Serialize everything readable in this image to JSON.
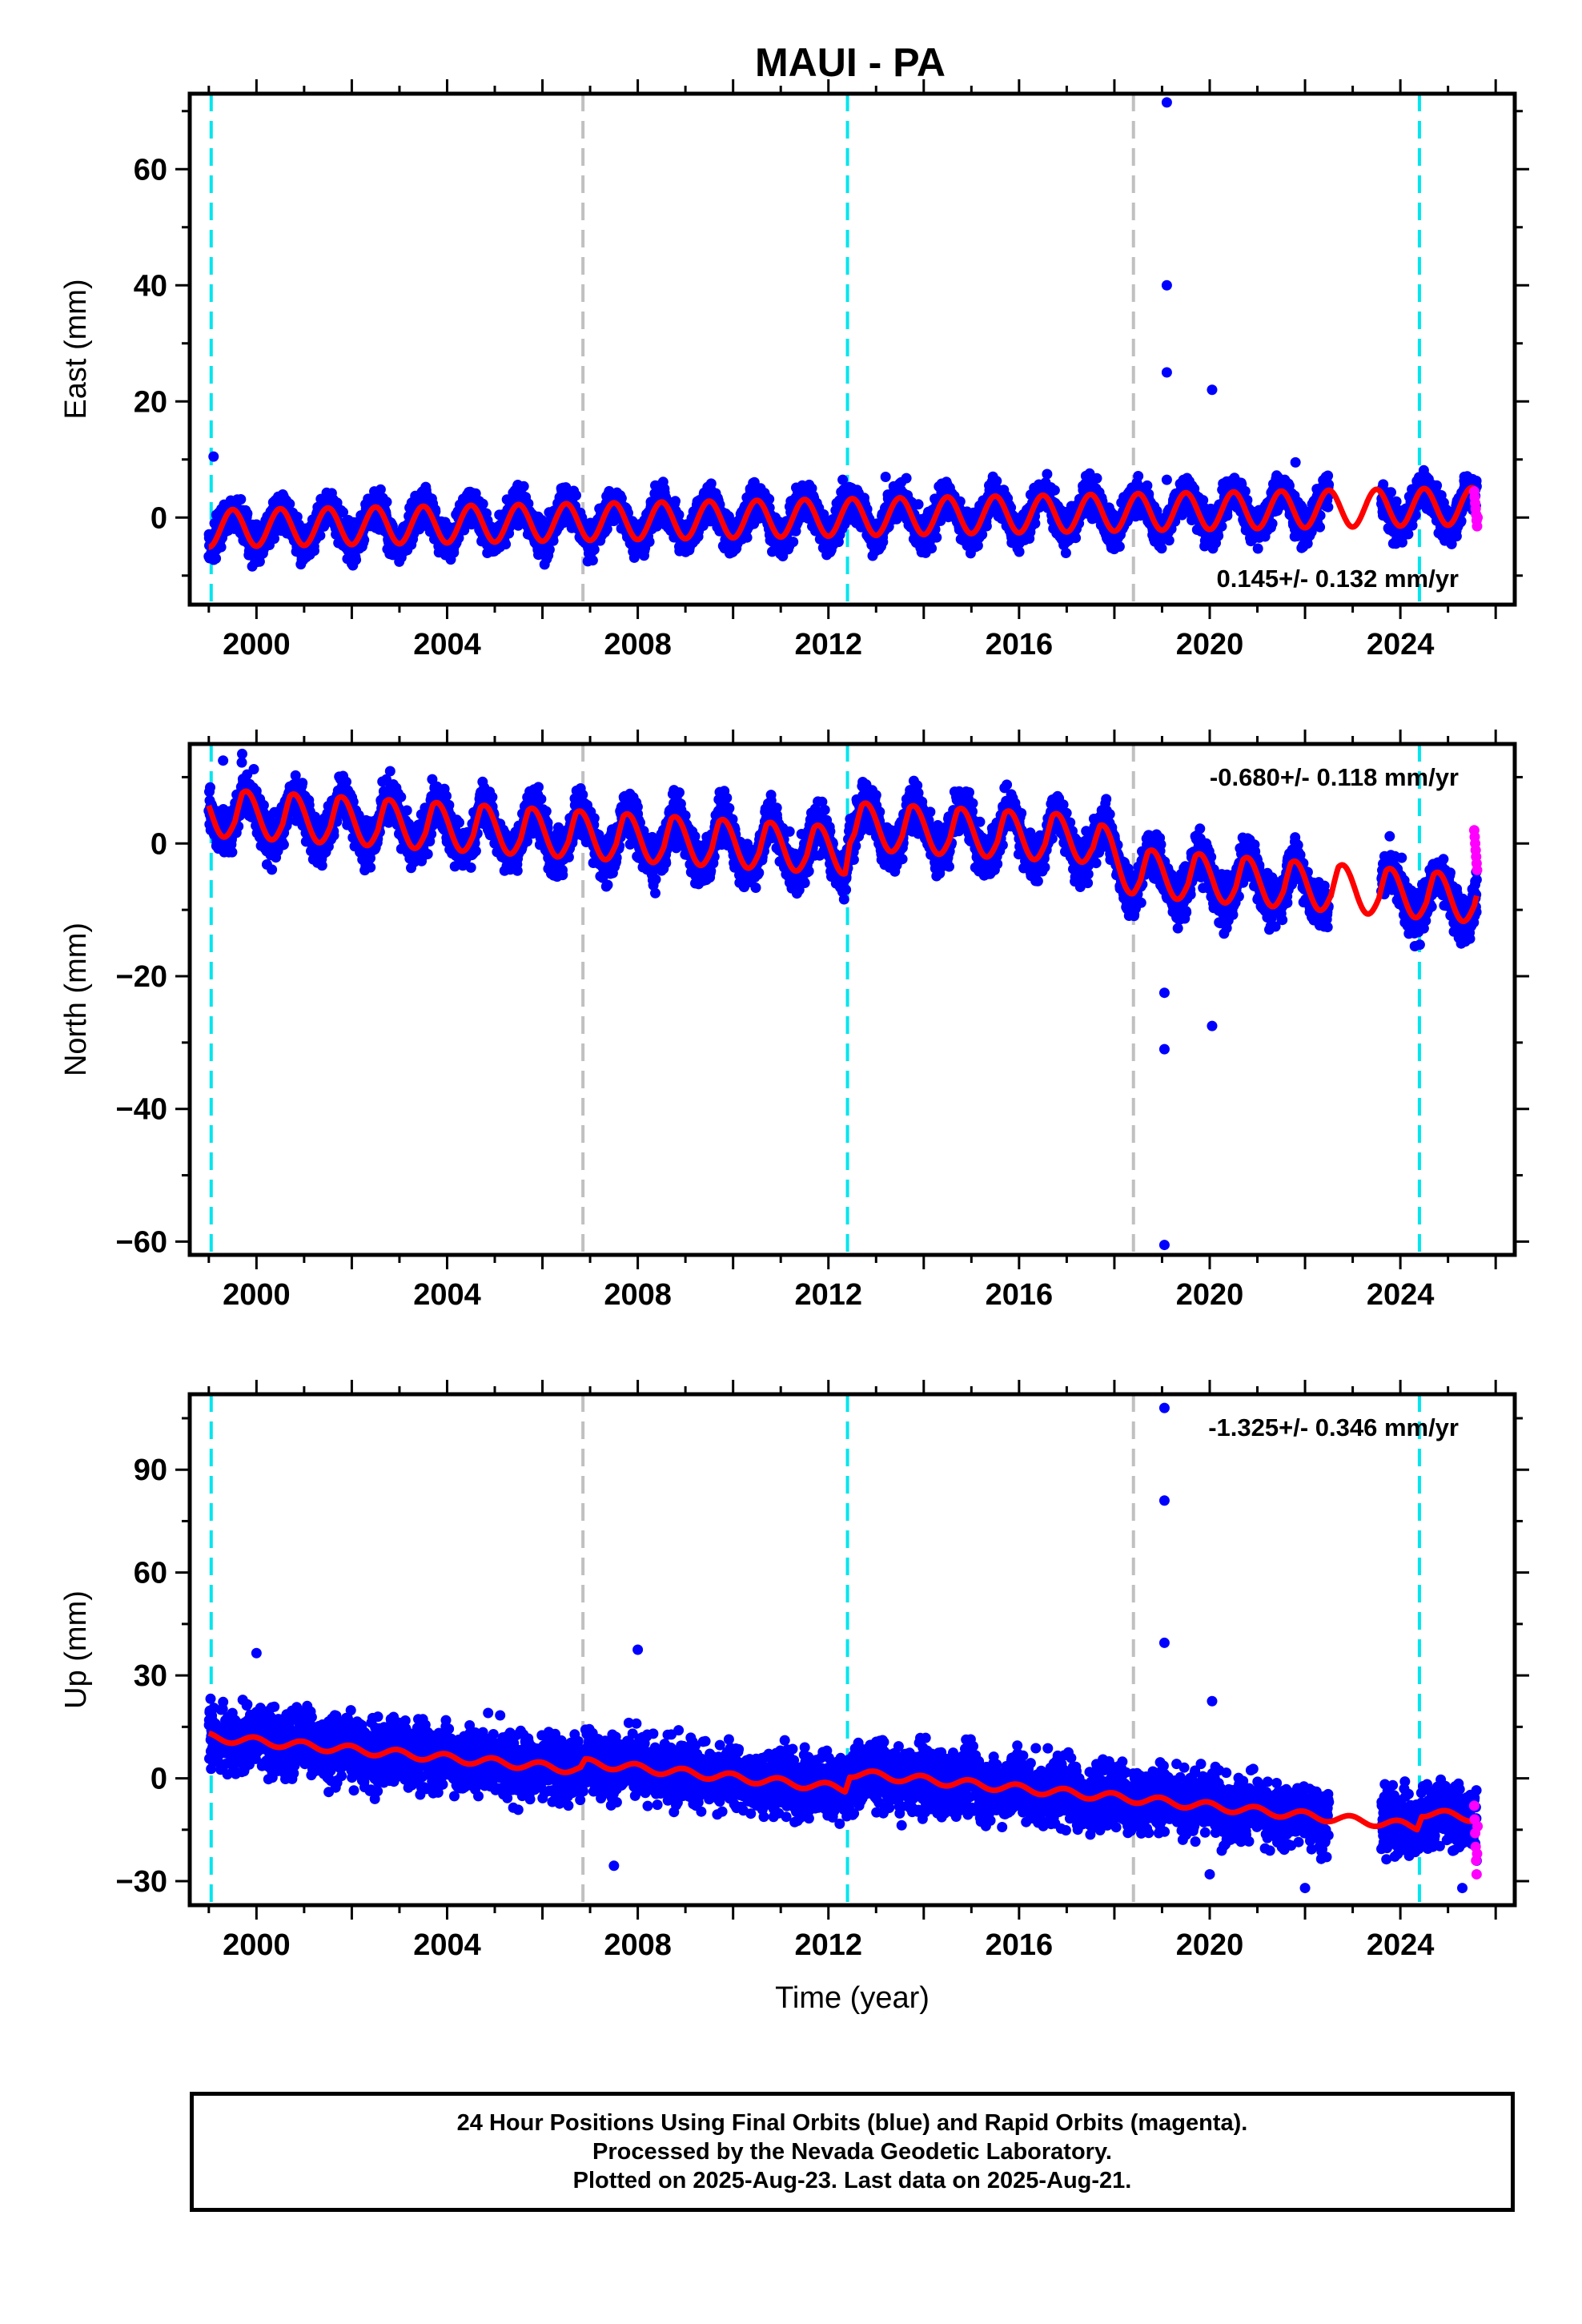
{
  "title": "MAUI - PA",
  "colors": {
    "final_orbits": "#0000ff",
    "rapid_orbits": "#ff00ff",
    "model_fit": "#ff0000",
    "equipment_change_line": "#00e5ee",
    "other_event_line": "#c0c0c0"
  },
  "caption": {
    "line1": "24 Hour Positions Using Final Orbits (blue) and Rapid Orbits (magenta).",
    "line2": "Processed by the Nevada Geodetic Laboratory.",
    "line3": "Plotted on 2025-Aug-23. Last data on 2025-Aug-21."
  },
  "chart_data": [
    {
      "type": "scatter",
      "component": "east",
      "ylabel": "East (mm)",
      "xlabel": "",
      "xlim": [
        1998.6,
        2026.4
      ],
      "ylim": [
        -15,
        73
      ],
      "xticks": [
        2000,
        2004,
        2008,
        2012,
        2016,
        2020,
        2024
      ],
      "yticks": [
        0,
        20,
        40,
        60
      ],
      "velocity_label": "0.145+/- 0.132 mm/yr",
      "velocity_label_position": "bottom-right",
      "vertical_lines": [
        {
          "x": 1999.05,
          "kind": "equipment"
        },
        {
          "x": 2006.85,
          "kind": "other"
        },
        {
          "x": 2012.4,
          "kind": "equipment"
        },
        {
          "x": 2018.4,
          "kind": "other"
        },
        {
          "x": 2024.4,
          "kind": "equipment"
        }
      ],
      "trend": {
        "start_year": 1999.0,
        "end_year": 2025.6,
        "offset": -1.9,
        "rate": 0.145,
        "seasonal_amplitude": 3.2,
        "phase_year": 1999.25
      },
      "scatter_spread": 2.2,
      "data_gap": [
        2022.5,
        2023.6
      ],
      "outliers": [
        {
          "x": 2019.1,
          "y": 71.5
        },
        {
          "x": 2019.1,
          "y": 40
        },
        {
          "x": 2019.1,
          "y": 25
        },
        {
          "x": 2020.05,
          "y": 22
        },
        {
          "x": 1999.1,
          "y": 10.5
        },
        {
          "x": 2012.3,
          "y": 6.5
        },
        {
          "x": 2013.2,
          "y": 7
        },
        {
          "x": 2021.8,
          "y": 9.5
        },
        {
          "x": 2019.1,
          "y": 6.5
        }
      ],
      "rapid_points": [
        {
          "x": 2025.55,
          "y": 4.5
        },
        {
          "x": 2025.56,
          "y": 3.5
        },
        {
          "x": 2025.57,
          "y": 2.5
        },
        {
          "x": 2025.58,
          "y": 1.5
        },
        {
          "x": 2025.59,
          "y": 0.5
        },
        {
          "x": 2025.6,
          "y": -0.5
        },
        {
          "x": 2025.61,
          "y": -1.5
        },
        {
          "x": 2025.62,
          "y": 0
        }
      ]
    },
    {
      "type": "scatter",
      "component": "north",
      "ylabel": "North (mm)",
      "xlabel": "",
      "xlim": [
        1998.6,
        2026.4
      ],
      "ylim": [
        -62,
        15
      ],
      "xticks": [
        2000,
        2004,
        2008,
        2012,
        2016,
        2020,
        2024
      ],
      "yticks": [
        -60,
        -40,
        -20,
        0
      ],
      "velocity_label": "-0.680+/- 0.118 mm/yr",
      "velocity_label_position": "top-right",
      "vertical_lines": [
        {
          "x": 1999.05,
          "kind": "equipment"
        },
        {
          "x": 2006.85,
          "kind": "other"
        },
        {
          "x": 2012.4,
          "kind": "equipment"
        },
        {
          "x": 2018.4,
          "kind": "other"
        },
        {
          "x": 2024.4,
          "kind": "equipment"
        }
      ],
      "trend_points": [
        [
          1999.0,
          4.5
        ],
        [
          2012.35,
          -1.2
        ],
        [
          2012.45,
          2.5
        ],
        [
          2017.5,
          0.5
        ],
        [
          2018.4,
          -4.5
        ],
        [
          2025.6,
          -8.5
        ]
      ],
      "seasonal_amplitude": 3.0,
      "phase_year": 1999.55,
      "scatter_spread": 2.4,
      "data_gap": [
        2022.5,
        2023.6
      ],
      "outliers": [
        {
          "x": 2019.05,
          "y": -60.5
        },
        {
          "x": 2019.05,
          "y": -31
        },
        {
          "x": 2019.05,
          "y": -22.5
        },
        {
          "x": 2020.05,
          "y": -27.5
        },
        {
          "x": 1999.7,
          "y": 13.5
        },
        {
          "x": 1999.3,
          "y": 12.5
        }
      ],
      "rapid_points": [
        {
          "x": 2025.55,
          "y": 2
        },
        {
          "x": 2025.56,
          "y": 1
        },
        {
          "x": 2025.57,
          "y": 0
        },
        {
          "x": 2025.58,
          "y": -1
        },
        {
          "x": 2025.59,
          "y": -2
        },
        {
          "x": 2025.6,
          "y": -3
        },
        {
          "x": 2025.61,
          "y": -4
        }
      ]
    },
    {
      "type": "scatter",
      "component": "up",
      "ylabel": "Up (mm)",
      "xlabel": "Time (year)",
      "xlim": [
        1998.6,
        2026.4
      ],
      "ylim": [
        -37,
        112
      ],
      "xticks": [
        2000,
        2004,
        2008,
        2012,
        2016,
        2020,
        2024
      ],
      "yticks": [
        -30,
        0,
        30,
        60,
        90
      ],
      "velocity_label": "-1.325+/- 0.346 mm/yr",
      "velocity_label_position": "top-right",
      "vertical_lines": [
        {
          "x": 1999.05,
          "kind": "equipment"
        },
        {
          "x": 2006.85,
          "kind": "other"
        },
        {
          "x": 2012.4,
          "kind": "equipment"
        },
        {
          "x": 2018.4,
          "kind": "other"
        },
        {
          "x": 2024.4,
          "kind": "equipment"
        }
      ],
      "trend_points": [
        [
          1999.0,
          12
        ],
        [
          2006.8,
          2.5
        ],
        [
          2006.9,
          4.5
        ],
        [
          2012.35,
          -3
        ],
        [
          2012.45,
          1.5
        ],
        [
          2018.4,
          -6
        ],
        [
          2024.35,
          -14
        ],
        [
          2024.45,
          -10
        ],
        [
          2025.6,
          -11.5
        ]
      ],
      "seasonal_amplitude": 1.2,
      "phase_year": 1999.7,
      "scatter_spread": 6.5,
      "data_gap": [
        2022.5,
        2023.6
      ],
      "outliers": [
        {
          "x": 2019.05,
          "y": 108
        },
        {
          "x": 2019.05,
          "y": 81
        },
        {
          "x": 2019.05,
          "y": 39.5
        },
        {
          "x": 2020.05,
          "y": 22.5
        },
        {
          "x": 2008.0,
          "y": 37.5
        },
        {
          "x": 2000.0,
          "y": 36.5
        },
        {
          "x": 2007.5,
          "y": -25.5
        },
        {
          "x": 2022.0,
          "y": -32
        },
        {
          "x": 2025.3,
          "y": -32
        },
        {
          "x": 2020.0,
          "y": -28
        }
      ],
      "rapid_points": [
        {
          "x": 2025.55,
          "y": -8
        },
        {
          "x": 2025.56,
          "y": -12
        },
        {
          "x": 2025.57,
          "y": -16
        },
        {
          "x": 2025.58,
          "y": -20
        },
        {
          "x": 2025.59,
          "y": -24
        },
        {
          "x": 2025.6,
          "y": -28
        },
        {
          "x": 2025.61,
          "y": -22
        },
        {
          "x": 2025.62,
          "y": -14
        }
      ]
    }
  ]
}
